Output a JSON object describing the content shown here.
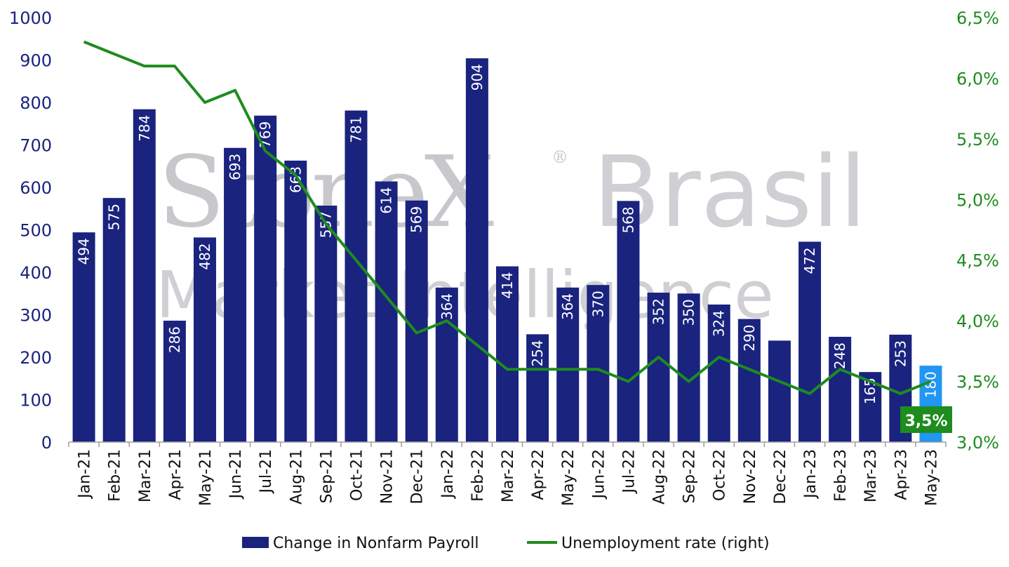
{
  "watermark": {
    "line1": "StoneX",
    "brand": "Brasil",
    "line2": "Market Intelligence",
    "reg": "®"
  },
  "colors": {
    "bar": "#1a237e",
    "bar_highlight": "#2196f3",
    "line": "#1e8c1e",
    "left_axis": "#1a237e",
    "right_axis": "#1e8c1e"
  },
  "callout": {
    "text": "3,5%"
  },
  "chart_data": {
    "type": "bar",
    "categories": [
      "Jan-21",
      "Feb-21",
      "Mar-21",
      "Apr-21",
      "May-21",
      "Jun-21",
      "Jul-21",
      "Aug-21",
      "Sep-21",
      "Oct-21",
      "Nov-21",
      "Dec-21",
      "Jan-22",
      "Feb-22",
      "Mar-22",
      "Apr-22",
      "May-22",
      "Jun-22",
      "Jul-22",
      "Aug-22",
      "Sep-22",
      "Oct-22",
      "Nov-22",
      "Dec-22",
      "Jan-23",
      "Feb-23",
      "Mar-23",
      "Apr-23",
      "May-23"
    ],
    "series": [
      {
        "name": "Change in Nonfarm Payroll",
        "type": "bar",
        "axis": "left",
        "values": [
          494,
          575,
          784,
          286,
          482,
          693,
          769,
          663,
          557,
          781,
          614,
          569,
          364,
          904,
          414,
          254,
          364,
          370,
          568,
          352,
          350,
          324,
          290,
          239,
          472,
          248,
          165,
          253,
          180
        ],
        "labels": [
          "494",
          "575",
          "784",
          "286",
          "482",
          "693",
          "769",
          "663",
          "557",
          "781",
          "614",
          "569",
          "364",
          "904",
          "414",
          "254",
          "364",
          "370",
          "568",
          "352",
          "350",
          "324",
          "290",
          "",
          "472",
          "248",
          "165",
          "253",
          "180"
        ]
      },
      {
        "name": "Unemployment rate (right)",
        "type": "line",
        "axis": "right",
        "values": [
          6.3,
          6.2,
          6.1,
          6.1,
          5.8,
          5.9,
          5.4,
          5.2,
          4.8,
          4.5,
          4.2,
          3.9,
          4.0,
          3.8,
          3.6,
          3.6,
          3.6,
          3.6,
          3.5,
          3.7,
          3.5,
          3.7,
          3.6,
          3.5,
          3.4,
          3.6,
          3.5,
          3.4,
          3.5
        ]
      }
    ],
    "left_axis": {
      "ylim": [
        0,
        1000
      ],
      "ticks": [
        "0",
        "100",
        "200",
        "300",
        "400",
        "500",
        "600",
        "700",
        "800",
        "900",
        "1000"
      ]
    },
    "right_axis": {
      "ylim": [
        3.0,
        6.5
      ],
      "ticks": [
        "3,0%",
        "3,5%",
        "4,0%",
        "4,5%",
        "5,0%",
        "5,5%",
        "6,0%",
        "6,5%"
      ]
    },
    "legend_position": "bottom",
    "grid": false
  }
}
